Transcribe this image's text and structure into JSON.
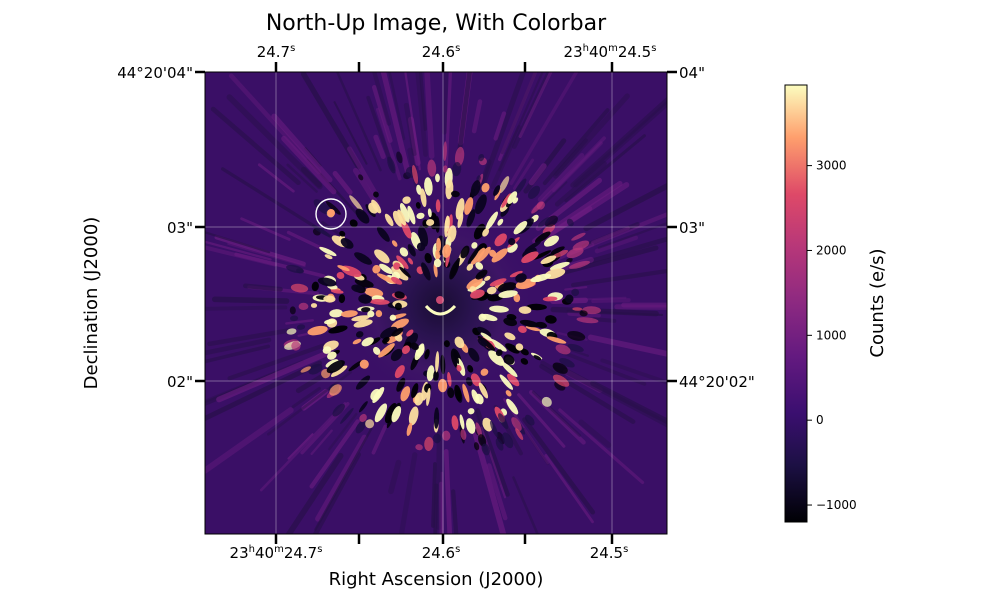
{
  "chart_data": {
    "type": "heatmap",
    "title": "North-Up Image, With Colorbar",
    "xlabel": "Right Ascension (J2000)",
    "ylabel": "Declination (J2000)",
    "grid": true,
    "colormap": "magma",
    "colorbar": {
      "label": "Counts (e/s)",
      "range": [
        -1200,
        3950
      ],
      "ticks": [
        -1000,
        0,
        1000,
        2000,
        3000
      ],
      "tick_labels": [
        "−1000",
        "0",
        "1000",
        "2000",
        "3000"
      ]
    },
    "ra_ticks_bottom": [
      {
        "h": "23",
        "m": "40",
        "s": "24.7"
      },
      {
        "s": "24.6"
      },
      {
        "s": "24.5"
      }
    ],
    "ra_ticks_top": [
      {
        "s": "24.7"
      },
      {
        "s": "24.6"
      },
      {
        "h": "23",
        "m": "40",
        "s": "24.5"
      }
    ],
    "dec_ticks_left": [
      "44°20'04\"",
      "03\"",
      "02\""
    ],
    "dec_ticks_right": [
      "04\"",
      "03\"",
      "44°20'02\""
    ],
    "annotation": {
      "type": "circle",
      "color": "#ffffff",
      "description": "marked point source"
    },
    "image_summary": {
      "background_counts": 0,
      "saturated_max_counts": 3950,
      "min_counts": -1200
    }
  }
}
